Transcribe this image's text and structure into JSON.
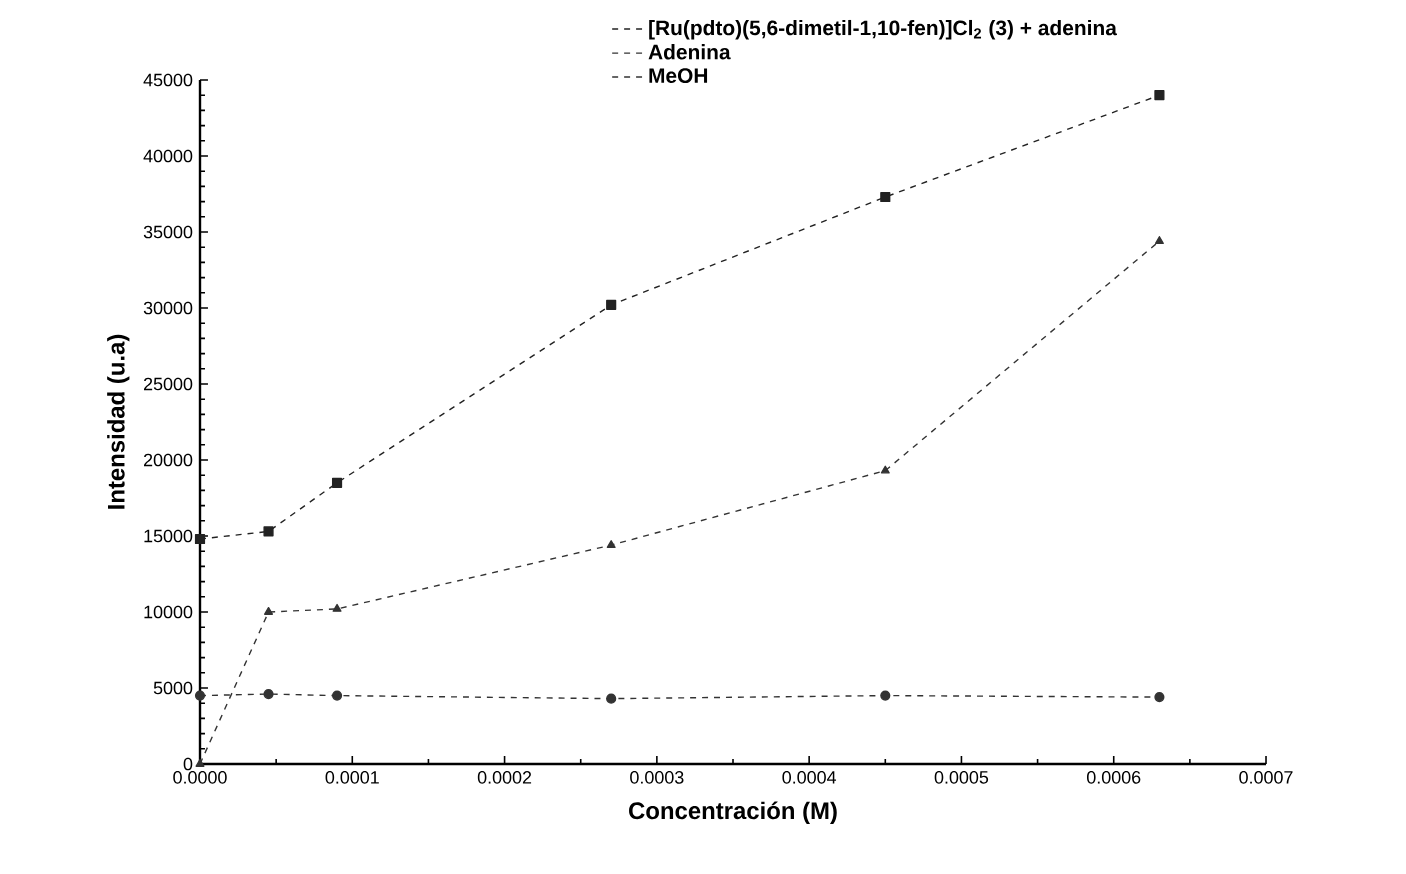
{
  "chart_data": {
    "type": "line",
    "xlabel": "Concentración (M)",
    "ylabel": "Intensidad (u.a)",
    "x": [
      0,
      4.5e-05,
      9e-05,
      0.00027,
      0.00045,
      0.00063
    ],
    "series": [
      {
        "name": "[Ru(pdto)(5,6-dimetil-1,10-fen)]Cl$_{2}$ (3) + adenina",
        "color": "#222222",
        "marker": "square",
        "line_style": "dashed",
        "values": [
          14800,
          15300,
          18500,
          30200,
          37300,
          44000
        ]
      },
      {
        "name": "Adenina",
        "color": "#333333",
        "marker": "triangle",
        "line_style": "dashed",
        "values": [
          0,
          10000,
          10200,
          14400,
          19300,
          34400
        ]
      },
      {
        "name": "MeOH",
        "color": "#333333",
        "marker": "circle",
        "line_style": "dashed",
        "values": [
          4500,
          4600,
          4500,
          4300,
          4500,
          4400
        ]
      }
    ],
    "xlim": [
      0,
      0.0007
    ],
    "xticks": [
      {
        "value": 0,
        "label": "0.0000"
      },
      {
        "value": 0.0001,
        "label": "0.0001"
      },
      {
        "value": 0.0002,
        "label": "0.0002"
      },
      {
        "value": 0.0003,
        "label": "0.0003"
      },
      {
        "value": 0.0004,
        "label": "0.0004"
      },
      {
        "value": 0.0005,
        "label": "0.0005"
      },
      {
        "value": 0.0006,
        "label": "0.0006"
      },
      {
        "value": 0.0007,
        "label": "0.0007"
      }
    ],
    "ylim": [
      0,
      45000
    ],
    "yticks": [
      0,
      5000,
      10000,
      15000,
      20000,
      25000,
      30000,
      35000,
      40000,
      45000
    ],
    "grid": false,
    "legend": "top right"
  }
}
